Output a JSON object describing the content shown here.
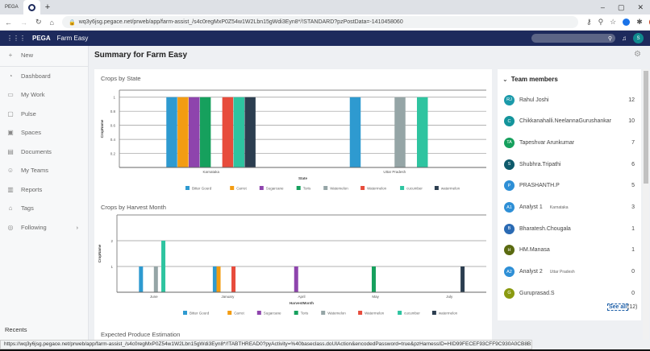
{
  "browser": {
    "tabs": [
      {
        "label": "PEGA"
      },
      {
        "label": ""
      }
    ],
    "new_tab": "+",
    "url": "wq3y6jsg.pegace.net/prweb/app/farm-assist_/s4c0regMxP0Z54w1W2Lbn15gWdi3Eyn8*/!STANDARD?pzPostData=-1410458060",
    "profile_initial": "T",
    "status_url": "https://wq3y6jsg.pegace.net/prweb/app/farm-assist_/s4c0regMxP0Z54w1W2Lbn15gWdi3Eyn8*/!TABTHREAD0?pyActivity=%40baseclass.doUIAction&encodedPassword=true&pzHarnessID=HID99FECEF93CFF9C930A0CB8B1E75C3C58#"
  },
  "header": {
    "brand": "PEGA",
    "app": "Farm Easy",
    "user_initial": "S"
  },
  "sidebar": {
    "new_label": "New",
    "items": [
      {
        "label": "Dashboard",
        "icon": "dashboard-icon",
        "glyph": "◔"
      },
      {
        "label": "My Work",
        "icon": "work-icon",
        "glyph": "▭"
      },
      {
        "label": "Pulse",
        "icon": "pulse-icon",
        "glyph": "▢"
      },
      {
        "label": "Spaces",
        "icon": "spaces-icon",
        "glyph": "▣"
      },
      {
        "label": "Documents",
        "icon": "documents-icon",
        "glyph": "▤"
      },
      {
        "label": "My Teams",
        "icon": "teams-icon",
        "glyph": "☺"
      },
      {
        "label": "Reports",
        "icon": "reports-icon",
        "glyph": "▥"
      },
      {
        "label": "Tags",
        "icon": "tags-icon",
        "glyph": "⌂"
      },
      {
        "label": "Following",
        "icon": "following-icon",
        "glyph": "◎"
      }
    ],
    "recents": "Recents"
  },
  "main": {
    "title": "Summary for Farm Easy",
    "next_section": "Expected Produce Estimation"
  },
  "colors": {
    "Bitter Gourd": "#2e9ad0",
    "Carrot": "#f39c12",
    "Sugarcane": "#8e44ad",
    "Toris": "#16a05d",
    "Watemelon": "#95a5a6",
    "Watermelon": "#e74c3c",
    "cucumber": "#2ec4a0",
    "watermelon": "#2c3e50"
  },
  "chart_data": [
    {
      "type": "bar",
      "title": "Crops by State",
      "xlabel": "State",
      "ylabel": "CropName",
      "ylim": [
        0,
        1.1
      ],
      "yticks": [
        "0.2",
        "0.4",
        "0.6",
        "0.8",
        "1"
      ],
      "categories": [
        "Karnataka",
        "Uttar Pradesh"
      ],
      "legend": "bottom",
      "series": [
        {
          "name": "Bitter Gourd",
          "values": [
            1,
            1
          ]
        },
        {
          "name": "Carrot",
          "values": [
            1,
            0
          ]
        },
        {
          "name": "Sugarcane",
          "values": [
            1,
            0
          ]
        },
        {
          "name": "Toris",
          "values": [
            1,
            0
          ]
        },
        {
          "name": "Watemelon",
          "values": [
            0,
            1
          ]
        },
        {
          "name": "Watermelon",
          "values": [
            1,
            0
          ]
        },
        {
          "name": "cucumber",
          "values": [
            1,
            1
          ]
        },
        {
          "name": "watermelon",
          "values": [
            1,
            0
          ]
        }
      ]
    },
    {
      "type": "bar",
      "title": "Crops by Harvest Month",
      "xlabel": "HarvestMonth",
      "ylabel": "CropName",
      "ylim": [
        0,
        3
      ],
      "yticks": [
        "1",
        "2"
      ],
      "categories": [
        "June",
        "January",
        "April",
        "May",
        "July"
      ],
      "legend": "bottom",
      "series": [
        {
          "name": "Bitter Gourd",
          "values": [
            1,
            1,
            0,
            0,
            0
          ]
        },
        {
          "name": "Carrot",
          "values": [
            0,
            1,
            0,
            0,
            0
          ]
        },
        {
          "name": "Sugarcane",
          "values": [
            0,
            0,
            1,
            0,
            0
          ]
        },
        {
          "name": "Toris",
          "values": [
            0,
            0,
            0,
            1,
            0
          ]
        },
        {
          "name": "Watemelon",
          "values": [
            1,
            0,
            0,
            0,
            0
          ]
        },
        {
          "name": "Watermelon",
          "values": [
            0,
            1,
            0,
            0,
            0
          ]
        },
        {
          "name": "cucumber",
          "values": [
            2,
            0,
            0,
            0,
            0
          ]
        },
        {
          "name": "watermelon",
          "values": [
            0,
            0,
            0,
            0,
            1
          ]
        }
      ]
    }
  ],
  "team": {
    "title": "Team members",
    "see_all": "See all",
    "total": "(12)",
    "members": [
      {
        "initials": "RJ",
        "name": "Rahul Joshi",
        "count": "12",
        "color": "#1b9aaa"
      },
      {
        "initials": "C",
        "name": "Chikkanahalli.NeelannaGurushankar",
        "count": "10",
        "color": "#13949b"
      },
      {
        "initials": "TA",
        "name": "Tapeshvar Arunkumar",
        "count": "7",
        "color": "#16a05d"
      },
      {
        "initials": "S",
        "name": "Shubhra.Tripathi",
        "count": "6",
        "color": "#0e5a6b"
      },
      {
        "initials": "P",
        "name": "PRASHANTH.P",
        "count": "5",
        "color": "#2e8fd6"
      },
      {
        "initials": "A1",
        "name": "Analyst 1",
        "sub": "Karnataka",
        "count": "3",
        "color": "#2e8fd6"
      },
      {
        "initials": "B",
        "name": "Bharatesh.Chougala",
        "count": "1",
        "color": "#2a6ab3"
      },
      {
        "initials": "H",
        "name": "HM.Manasa",
        "count": "1",
        "color": "#5a6a10"
      },
      {
        "initials": "A2",
        "name": "Analyst 2",
        "sub": "Uttar Pradesh",
        "count": "0",
        "color": "#2e8fd6"
      },
      {
        "initials": "G",
        "name": "Guruprasad.S",
        "count": "0",
        "color": "#8a9a10"
      }
    ]
  }
}
